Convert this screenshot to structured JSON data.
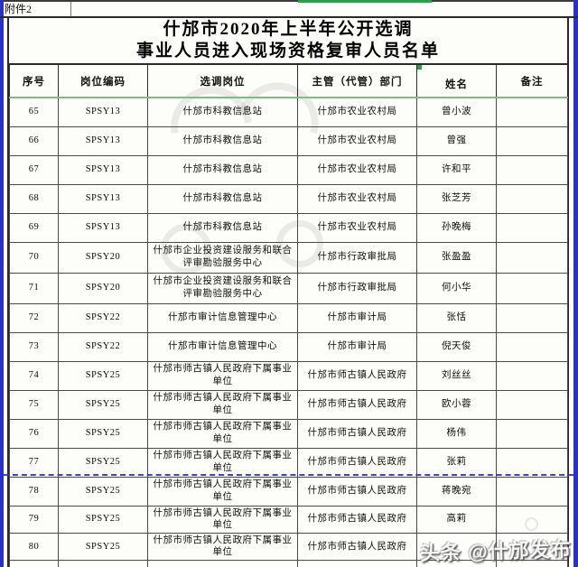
{
  "page": {
    "attachment_label": "附件2",
    "title_line1": "什邡市2020年上半年公开选调",
    "title_line2": "事业人员进入现场资格复审人员名单"
  },
  "table": {
    "columns": [
      "序号",
      "岗位编码",
      "选调岗位",
      "主管（代管）部门",
      "姓名",
      "备注"
    ],
    "rows": [
      {
        "no": "65",
        "code": "SPSY13",
        "position": "什邡市科教信息站",
        "department": "什邡市农业农村局",
        "name": "曾小波",
        "remark": ""
      },
      {
        "no": "66",
        "code": "SPSY13",
        "position": "什邡市科教信息站",
        "department": "什邡市农业农村局",
        "name": "曾强",
        "remark": ""
      },
      {
        "no": "67",
        "code": "SPSY13",
        "position": "什邡市科教信息站",
        "department": "什邡市农业农村局",
        "name": "许和平",
        "remark": ""
      },
      {
        "no": "68",
        "code": "SPSY13",
        "position": "什邡市科教信息站",
        "department": "什邡市农业农村局",
        "name": "张芝芳",
        "remark": ""
      },
      {
        "no": "69",
        "code": "SPSY13",
        "position": "什邡市科教信息站",
        "department": "什邡市农业农村局",
        "name": "孙晚梅",
        "remark": ""
      },
      {
        "no": "70",
        "code": "SPSY20",
        "position": "什邡市企业投资建设服务和联合评审勘验服务中心",
        "department": "什邡市行政审批局",
        "name": "张盈盈",
        "remark": ""
      },
      {
        "no": "71",
        "code": "SPSY20",
        "position": "什邡市企业投资建设服务和联合评审勘验服务中心",
        "department": "什邡市行政审批局",
        "name": "何小华",
        "remark": ""
      },
      {
        "no": "72",
        "code": "SPSY22",
        "position": "什邡市审计信息管理中心",
        "department": "什邡市审计局",
        "name": "张恬",
        "remark": ""
      },
      {
        "no": "73",
        "code": "SPSY22",
        "position": "什邡市审计信息管理中心",
        "department": "什邡市审计局",
        "name": "倪天俊",
        "remark": ""
      },
      {
        "no": "74",
        "code": "SPSY25",
        "position": "什邡市师古镇人民政府下属事业单位",
        "department": "什邡市师古镇人民政府",
        "name": "刘丝丝",
        "remark": ""
      },
      {
        "no": "75",
        "code": "SPSY25",
        "position": "什邡市师古镇人民政府下属事业单位",
        "department": "什邡市师古镇人民政府",
        "name": "欧小蓉",
        "remark": ""
      },
      {
        "no": "76",
        "code": "SPSY25",
        "position": "什邡市师古镇人民政府下属事业单位",
        "department": "什邡市师古镇人民政府",
        "name": "杨伟",
        "remark": ""
      },
      {
        "no": "77",
        "code": "SPSY25",
        "position": "什邡市师古镇人民政府下属事业单位",
        "department": "什邡市师古镇人民政府",
        "name": "张莉",
        "remark": ""
      },
      {
        "no": "78",
        "code": "SPSY25",
        "position": "什邡市师古镇人民政府下属事业单位",
        "department": "什邡市师古镇人民政府",
        "name": "蒋晚宛",
        "remark": ""
      },
      {
        "no": "79",
        "code": "SPSY25",
        "position": "什邡市师古镇人民政府下属事业单位",
        "department": "什邡市师古镇人民政府",
        "name": "高莉",
        "remark": ""
      },
      {
        "no": "80",
        "code": "SPSY25",
        "position": "什邡市师古镇人民政府下属事业单位",
        "department": "什邡市师古镇人民政府",
        "name": "",
        "remark": ""
      }
    ]
  },
  "watermark": {
    "text": "头条 @什邡发布"
  },
  "colors": {
    "edge_blue": "#2b2fd0",
    "top_green": "#2f9e49",
    "header_green_line": "#7fbe7f",
    "pagebreak_blue": "#2330d8",
    "grid": "#2a2a2a"
  }
}
